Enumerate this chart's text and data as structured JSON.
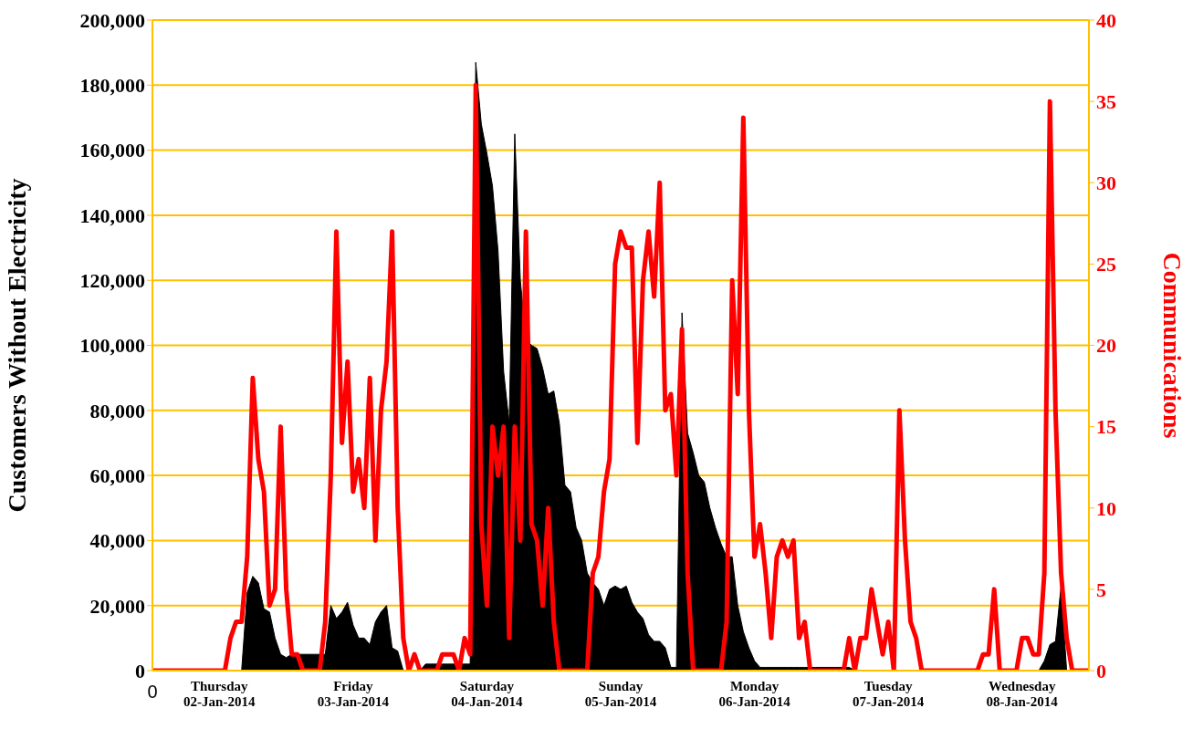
{
  "chart_data": {
    "type": "area",
    "ylabel": "Customers Without Electricity",
    "y2label": "Communications",
    "categories": [
      "0",
      null,
      null,
      null,
      null,
      null,
      null,
      null,
      null,
      null,
      null,
      null,
      "Thursday\n02-Jan-2014",
      null,
      null,
      null,
      null,
      null,
      null,
      null,
      null,
      null,
      null,
      null,
      null,
      null,
      null,
      null,
      null,
      null,
      null,
      null,
      null,
      null,
      null,
      null,
      "Friday\n03-Jan-2014",
      null,
      null,
      null,
      null,
      null,
      null,
      null,
      null,
      null,
      null,
      null,
      null,
      null,
      null,
      null,
      null,
      null,
      null,
      null,
      null,
      null,
      null,
      null,
      "Saturday\n04-Jan-2014",
      null,
      null,
      null,
      null,
      null,
      null,
      null,
      null,
      null,
      null,
      null,
      null,
      null,
      null,
      null,
      null,
      null,
      null,
      null,
      null,
      null,
      null,
      null,
      "Sunday\n05-Jan-2014",
      null,
      null,
      null,
      null,
      null,
      null,
      null,
      null,
      null,
      null,
      null,
      null,
      null,
      null,
      null,
      null,
      null,
      null,
      null,
      null,
      null,
      null,
      null,
      "Monday\n06-Jan-2014",
      null,
      null,
      null,
      null,
      null,
      null,
      null,
      null,
      null,
      null,
      null,
      null,
      null,
      null,
      null,
      null,
      null,
      null,
      null,
      null,
      null,
      null,
      null,
      "Tuesday\n07-Jan-2014",
      null,
      null,
      null,
      null,
      null,
      null,
      null,
      null,
      null,
      null,
      null,
      null,
      null,
      null,
      null,
      null,
      null,
      null,
      null,
      null,
      null,
      null,
      null,
      "Wednesday\n08-Jan-2014",
      null,
      null,
      null,
      null,
      null,
      null,
      null,
      null,
      null,
      null,
      null,
      null
    ],
    "ylim": [
      0,
      200000
    ],
    "yticks": [
      0,
      {
        "value": 20000,
        "label": "20,000"
      },
      {
        "value": 40000,
        "label": "40,000"
      },
      {
        "value": 60000,
        "label": "60,000"
      },
      {
        "value": 80000,
        "label": "80,000"
      },
      {
        "value": 100000,
        "label": "100,000"
      },
      {
        "value": 120000,
        "label": "120,000"
      },
      {
        "value": 140000,
        "label": "140,000"
      },
      {
        "value": 160000,
        "label": "160,000"
      },
      {
        "value": 180000,
        "label": "180,000"
      },
      {
        "value": 200000,
        "label": "200,000"
      }
    ],
    "y2lim": [
      0,
      40
    ],
    "y2ticks": [
      0,
      5,
      10,
      15,
      20,
      25,
      30,
      35,
      40
    ],
    "grid": "y",
    "series": [
      {
        "color": "#000000",
        "values": [
          0,
          0,
          0,
          0,
          0,
          0,
          0,
          0,
          0,
          0,
          0,
          0,
          0,
          0,
          0,
          0,
          0,
          24000,
          29000,
          27000,
          19000,
          18000,
          10000,
          5000,
          4000,
          5000,
          5000,
          5000,
          5000,
          5000,
          5000,
          5000,
          20000,
          16000,
          18000,
          21000,
          14000,
          10000,
          10000,
          8000,
          15000,
          18000,
          20000,
          7000,
          6000,
          0,
          0,
          0,
          0,
          2000,
          2000,
          2000,
          2000,
          2000,
          2000,
          2000,
          2000,
          2000,
          187000,
          168000,
          159000,
          149000,
          129000,
          92000,
          76000,
          165000,
          120000,
          102000,
          100000,
          99000,
          93000,
          85000,
          86000,
          76000,
          57000,
          55000,
          44000,
          40000,
          30000,
          27000,
          25000,
          20000,
          25000,
          26000,
          25000,
          26000,
          21000,
          18000,
          16000,
          11000,
          9000,
          9000,
          7000,
          1000,
          1000,
          110000,
          73000,
          67000,
          60000,
          58000,
          50000,
          44000,
          39000,
          35000,
          35000,
          20000,
          12000,
          7000,
          3000,
          1000,
          1000,
          1000,
          1000,
          1000,
          1000,
          1000,
          1000,
          1000,
          1000,
          1000,
          1000,
          1000,
          1000,
          1000,
          1000,
          1000,
          0,
          0,
          0,
          0,
          0,
          0,
          0,
          0,
          0,
          0,
          0,
          0,
          0,
          0,
          0,
          0,
          0,
          0,
          0,
          0,
          0,
          0,
          0,
          0,
          0,
          0,
          0,
          0,
          0,
          0,
          0,
          0,
          0,
          0,
          3000,
          8000,
          9000,
          26000,
          0,
          0,
          0,
          0,
          0
        ]
      },
      {
        "type": "line",
        "axis": "y2",
        "color": "#ff0000",
        "values": [
          0,
          0,
          0,
          0,
          0,
          0,
          0,
          0,
          0,
          0,
          0,
          0,
          0,
          0,
          2,
          3,
          3,
          7,
          18,
          13,
          11,
          4,
          5,
          15,
          5,
          1,
          1,
          0,
          0,
          0,
          0,
          3,
          12,
          27,
          14,
          19,
          11,
          13,
          10,
          18,
          8,
          16,
          19,
          27,
          10,
          2,
          0,
          1,
          0,
          0,
          0,
          0,
          1,
          1,
          1,
          0,
          2,
          1,
          36,
          9,
          4,
          15,
          12,
          15,
          2,
          15,
          8,
          27,
          9,
          8,
          4,
          10,
          3,
          0,
          0,
          0,
          0,
          0,
          0,
          6,
          7,
          11,
          13,
          25,
          27,
          26,
          26,
          14,
          24,
          27,
          23,
          30,
          16,
          17,
          12,
          21,
          6,
          0,
          0,
          0,
          0,
          0,
          0,
          3,
          24,
          17,
          34,
          16,
          7,
          9,
          6,
          2,
          7,
          8,
          7,
          8,
          2,
          3,
          0,
          0,
          0,
          0,
          0,
          0,
          0,
          2,
          0,
          2,
          2,
          5,
          3,
          1,
          3,
          0,
          16,
          8,
          3,
          2,
          0,
          0,
          0,
          0,
          0,
          0,
          0,
          0,
          0,
          0,
          0,
          1,
          1,
          5,
          0,
          0,
          0,
          0,
          2,
          2,
          1,
          1,
          6,
          35,
          16,
          6,
          2,
          0,
          0,
          0,
          0
        ]
      }
    ]
  }
}
